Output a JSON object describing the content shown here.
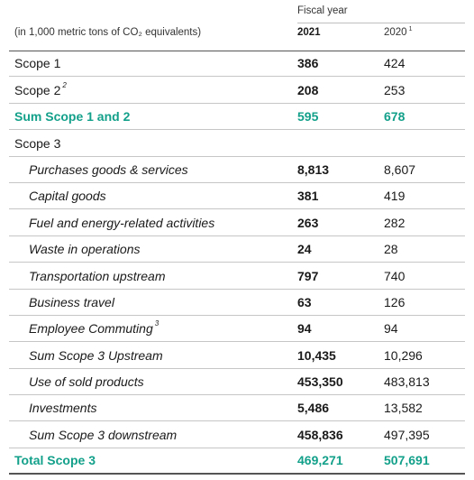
{
  "header": {
    "fiscal_year": "Fiscal year",
    "unit_note": "(in 1,000 metric tons of CO₂ equivalents)",
    "year_current": "2021",
    "year_prior": "2020",
    "year_prior_footnote": "1"
  },
  "rows": [
    {
      "label": "Scope 1",
      "footnote": "",
      "v2021": "386",
      "v2020": "424",
      "style": "plain"
    },
    {
      "label": "Scope 2",
      "footnote": "2",
      "v2021": "208",
      "v2020": "253",
      "style": "plain"
    },
    {
      "label": "Sum Scope 1 and 2",
      "footnote": "",
      "v2021": "595",
      "v2020": "678",
      "style": "sum"
    },
    {
      "label": "Scope 3",
      "footnote": "",
      "v2021": "",
      "v2020": "",
      "style": "plain"
    },
    {
      "label": "Purchases goods & services",
      "footnote": "",
      "v2021": "8,813",
      "v2020": "8,607",
      "style": "indent"
    },
    {
      "label": "Capital goods",
      "footnote": "",
      "v2021": "381",
      "v2020": "419",
      "style": "indent"
    },
    {
      "label": "Fuel and energy-related activities",
      "footnote": "",
      "v2021": "263",
      "v2020": "282",
      "style": "indent"
    },
    {
      "label": "Waste in operations",
      "footnote": "",
      "v2021": "24",
      "v2020": "28",
      "style": "indent"
    },
    {
      "label": "Transportation upstream",
      "footnote": "",
      "v2021": "797",
      "v2020": "740",
      "style": "indent"
    },
    {
      "label": "Business travel",
      "footnote": "",
      "v2021": "63",
      "v2020": "126",
      "style": "indent"
    },
    {
      "label": "Employee Commuting",
      "footnote": "3",
      "v2021": "94",
      "v2020": "94",
      "style": "indent"
    },
    {
      "label": "Sum Scope 3 Upstream",
      "footnote": "",
      "v2021": "10,435",
      "v2020": "10,296",
      "style": "indent"
    },
    {
      "label": "Use of sold products",
      "footnote": "",
      "v2021": "453,350",
      "v2020": "483,813",
      "style": "indent"
    },
    {
      "label": "Investments",
      "footnote": "",
      "v2021": "5,486",
      "v2020": "13,582",
      "style": "indent"
    },
    {
      "label": "Sum Scope 3 downstream",
      "footnote": "",
      "v2021": "458,836",
      "v2020": "497,395",
      "style": "indent"
    },
    {
      "label": "Total Scope 3",
      "footnote": "",
      "v2021": "469,271",
      "v2020": "507,691",
      "style": "sum"
    }
  ],
  "colors": {
    "accent": "#13a08a"
  }
}
